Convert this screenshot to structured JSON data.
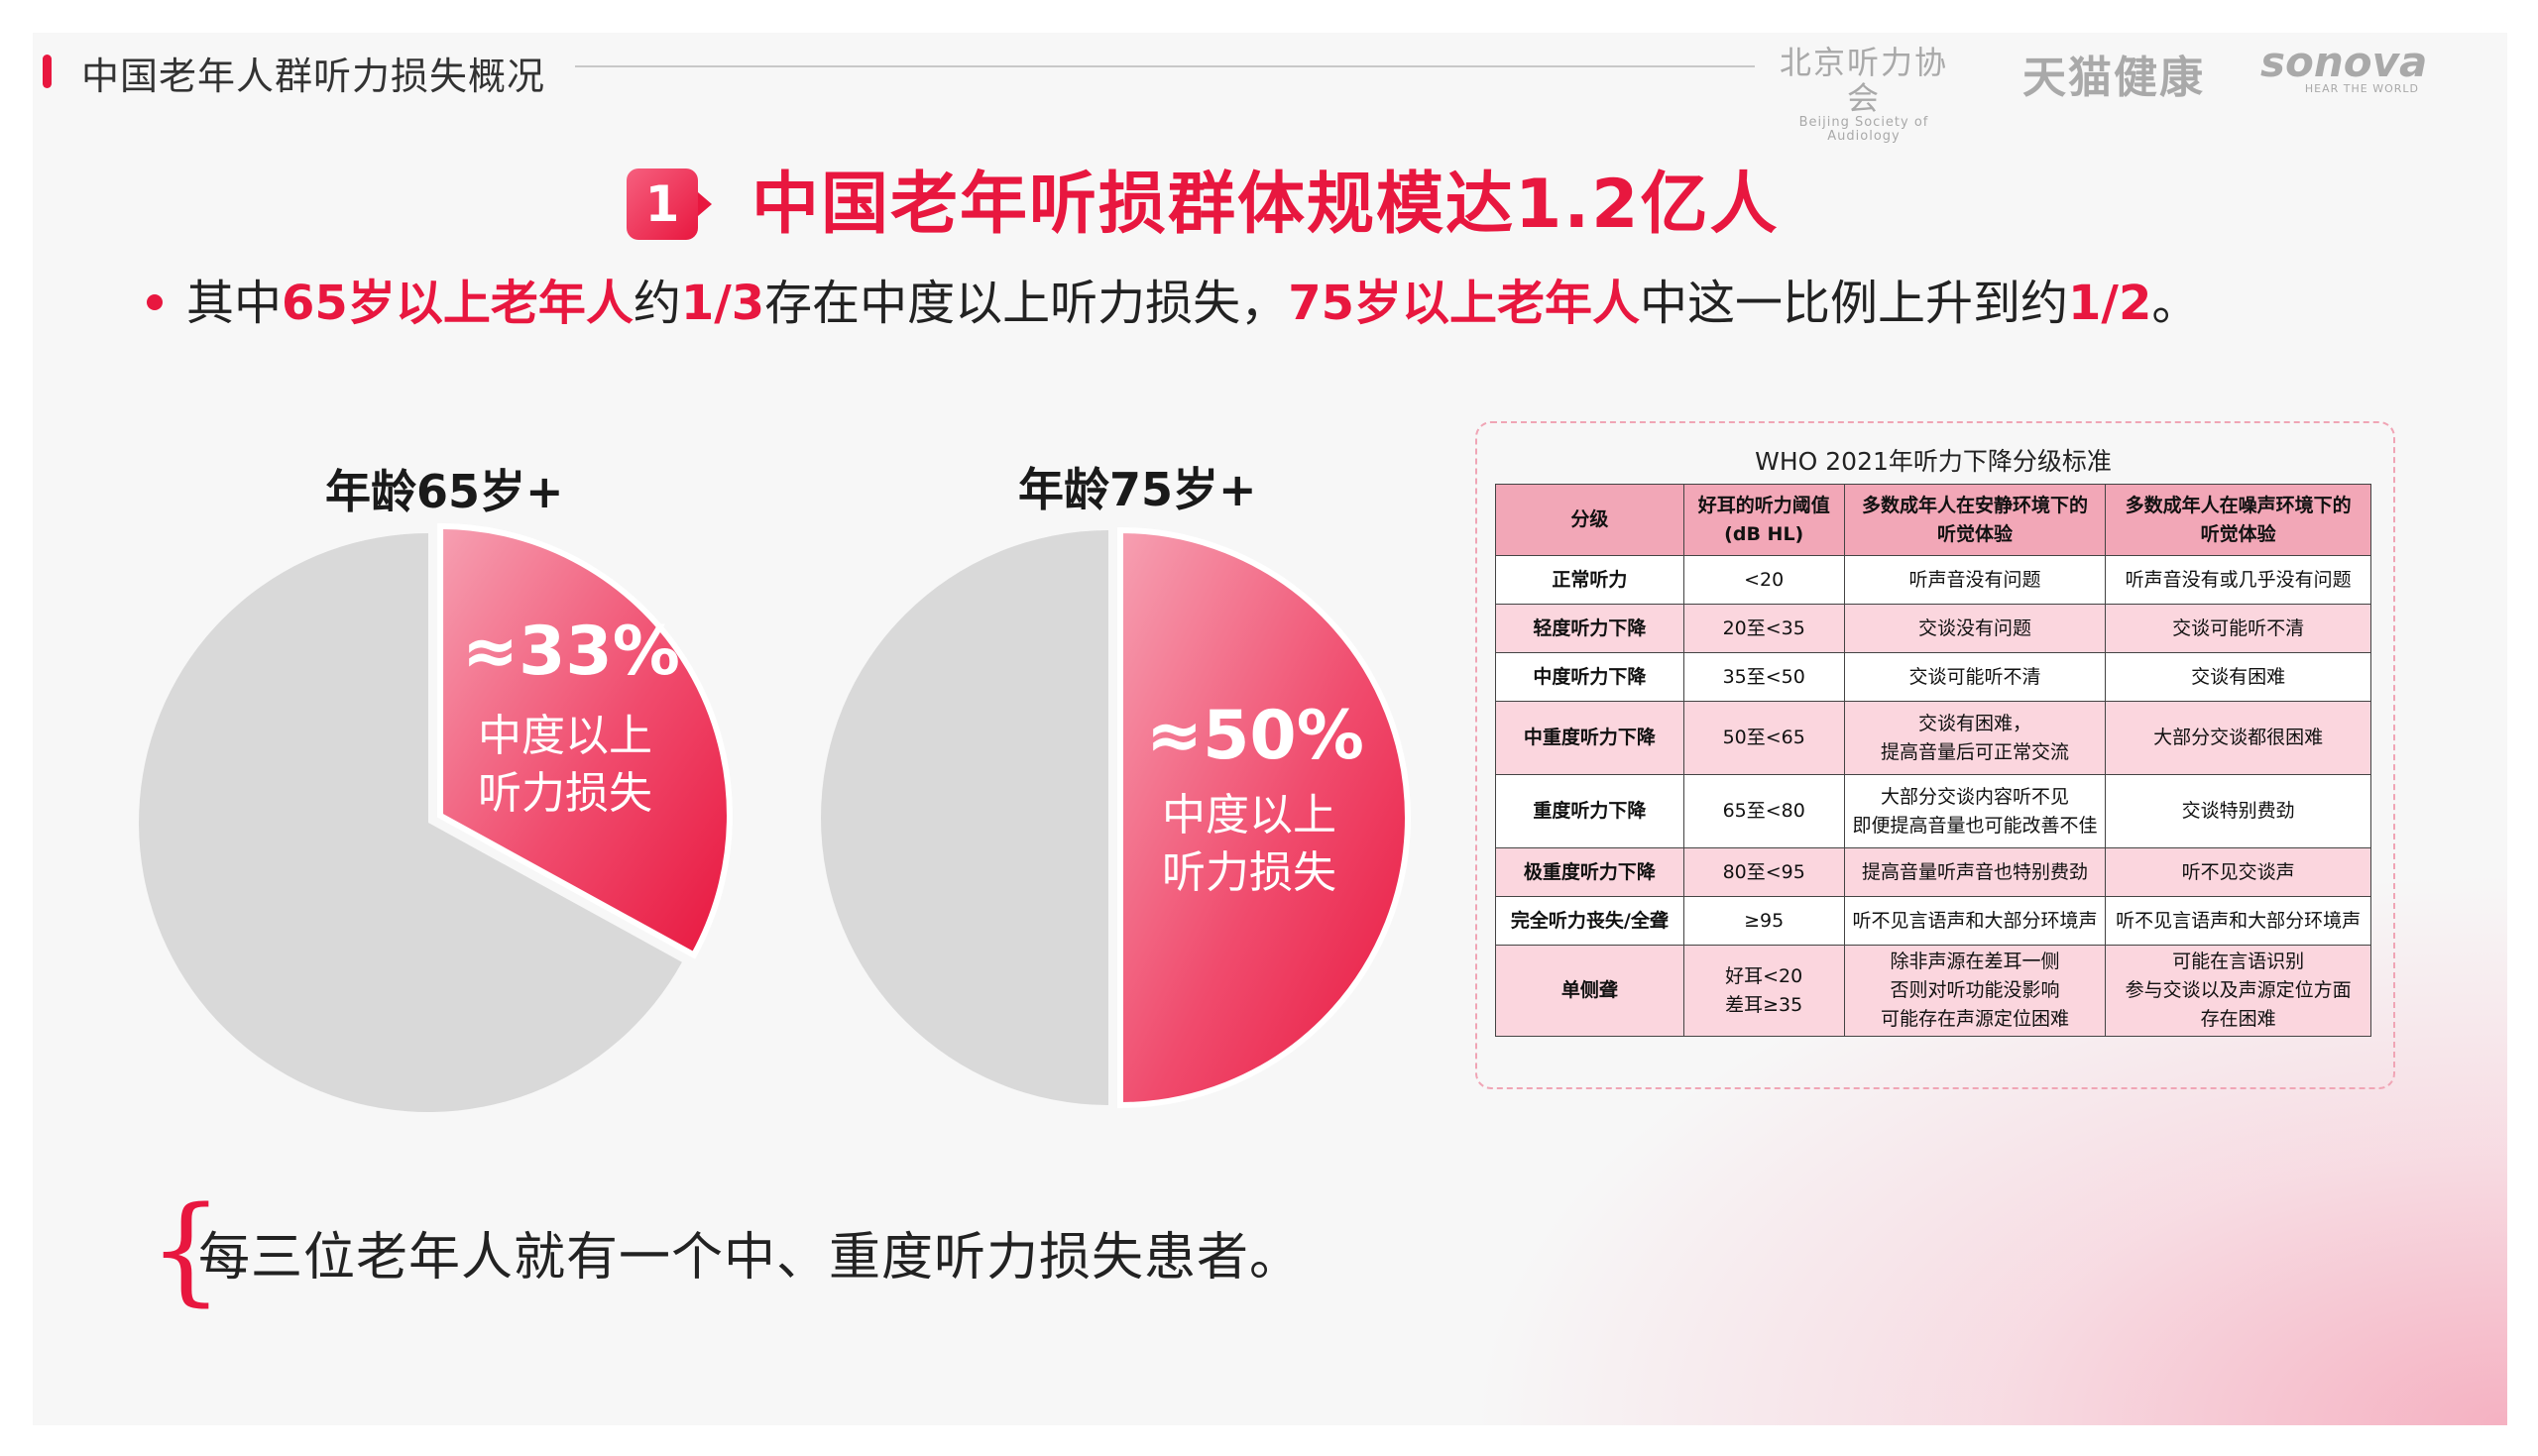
{
  "header": {
    "title": "中国老年人群听力损失概况"
  },
  "logos": {
    "bsa_cn": "北京听力协会",
    "bsa_en": "Beijing Society of Audiology",
    "tmall": "天猫健康",
    "sonova": "sonova",
    "sonova_tag": "HEAR THE WORLD"
  },
  "headline": {
    "number": "1",
    "text": "中国老年听损群体规模达1.2亿人"
  },
  "subtitle": {
    "p1": "其中",
    "p2": "65岁以上老年人",
    "p3": "约",
    "p4": "1/3",
    "p5": "存在中度以上听力损失，",
    "p6": "75岁以上老年人",
    "p7": "中这一比例上升到约",
    "p8": "1/2",
    "p9": "。"
  },
  "chart_data": [
    {
      "type": "pie",
      "title": "年龄65岁+",
      "slices": [
        {
          "label": "≈33%",
          "sub_label": "中度以上听力损失",
          "value": 33,
          "highlighted": true,
          "color": "#ee2c57"
        },
        {
          "label": "",
          "value": 67,
          "highlighted": false,
          "color": "#d9d9d9"
        }
      ]
    },
    {
      "type": "pie",
      "title": "年龄75岁+",
      "slices": [
        {
          "label": "≈50%",
          "sub_label": "中度以上听力损失",
          "value": 50,
          "highlighted": true,
          "color": "#ee2c57"
        },
        {
          "label": "",
          "value": 50,
          "highlighted": false,
          "color": "#d9d9d9"
        }
      ]
    }
  ],
  "pie1": {
    "label": "年龄65岁+",
    "pct": "≈33%",
    "line1": "中度以上",
    "line2": "听力损失"
  },
  "pie2": {
    "label": "年龄75岁+",
    "pct": "≈50%",
    "line1": "中度以上",
    "line2": "听力损失"
  },
  "who_table": {
    "title": "WHO 2021年听力下降分级标准",
    "headers": [
      [
        "分级"
      ],
      [
        "好耳的听力阈值",
        "(dB HL)"
      ],
      [
        "多数成年人在安静环境下的",
        "听觉体验"
      ],
      [
        "多数成年人在噪声环境下的",
        "听觉体验"
      ]
    ],
    "rows": [
      {
        "grade": "正常听力",
        "threshold": [
          "<20"
        ],
        "quiet": [
          "听声音没有问题"
        ],
        "noise": [
          "听声音没有或几乎没有问题"
        ]
      },
      {
        "grade": "轻度听力下降",
        "threshold": [
          "20至<35"
        ],
        "quiet": [
          "交谈没有问题"
        ],
        "noise": [
          "交谈可能听不清"
        ]
      },
      {
        "grade": "中度听力下降",
        "threshold": [
          "35至<50"
        ],
        "quiet": [
          "交谈可能听不清"
        ],
        "noise": [
          "交谈有困难"
        ]
      },
      {
        "grade": "中重度听力下降",
        "threshold": [
          "50至<65"
        ],
        "quiet": [
          "交谈有困难，",
          "提高音量后可正常交流"
        ],
        "noise": [
          "大部分交谈都很困难"
        ]
      },
      {
        "grade": "重度听力下降",
        "threshold": [
          "65至<80"
        ],
        "quiet": [
          "大部分交谈内容听不见",
          "即便提高音量也可能改善不佳"
        ],
        "noise": [
          "交谈特别费劲"
        ]
      },
      {
        "grade": "极重度听力下降",
        "threshold": [
          "80至<95"
        ],
        "quiet": [
          "提高音量听声音也特别费劲"
        ],
        "noise": [
          "听不见交谈声"
        ]
      },
      {
        "grade": "完全听力丧失/全聋",
        "threshold": [
          "≥95"
        ],
        "quiet": [
          "听不见言语声和大部分环境声"
        ],
        "noise": [
          "听不见言语声和大部分环境声"
        ]
      },
      {
        "grade": "单侧聋",
        "threshold": [
          "好耳<20",
          "差耳≥35"
        ],
        "quiet": [
          "除非声源在差耳一侧",
          "否则对听功能没影响",
          "可能存在声源定位困难"
        ],
        "noise": [
          "可能在言语识别",
          "参与交谈以及声源定位方面",
          "存在困难"
        ]
      }
    ]
  },
  "bottom": {
    "text": "每三位老年人就有一个中、重度听力损失患者。"
  }
}
